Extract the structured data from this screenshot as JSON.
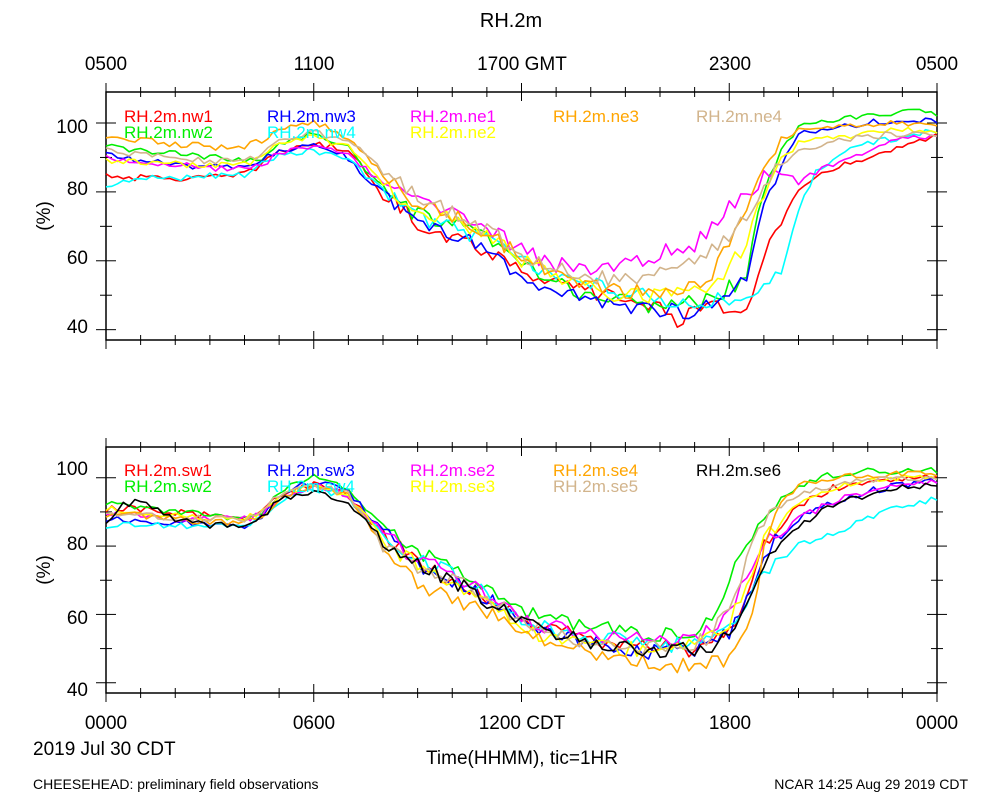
{
  "title": "RH.2m",
  "top_axis_ticks": [
    "0500",
    "1100",
    "1700 GMT",
    "2300",
    "0500"
  ],
  "bottom_axis_ticks": [
    "0000",
    "0600",
    "1200 CDT",
    "1800",
    "0000"
  ],
  "date_label": "2019 Jul 30 CDT",
  "xlabel": "Time(HHMM), tic=1HR",
  "footer_left": "CHEESEHEAD: preliminary field observations",
  "footer_right": "NCAR 14:25 Aug 29 2019 CDT",
  "chart_data": [
    {
      "type": "line",
      "panel": "top",
      "ylabel": "(%)",
      "y_ticks": [
        "40",
        "60",
        "80",
        "100"
      ],
      "ylim": [
        37,
        109
      ],
      "xlim_hours": [
        0,
        24
      ],
      "x_tick_interval_hours": 1,
      "series": [
        {
          "name": "RH.2m.nw1",
          "color": "#ff0000",
          "x": [
            0,
            1,
            2,
            3,
            4,
            4.5,
            5,
            6,
            7,
            8,
            9,
            10,
            11,
            12,
            13,
            14,
            15,
            16,
            16.5,
            17,
            18,
            18.5,
            19,
            20,
            21,
            22,
            23,
            24
          ],
          "y": [
            85,
            84,
            84,
            84,
            85,
            88,
            92,
            94,
            92,
            80,
            71,
            67,
            63,
            58,
            53,
            51,
            49,
            46,
            43,
            46,
            46,
            47,
            62,
            80,
            87,
            90,
            93,
            96
          ]
        },
        {
          "name": "RH.2m.nw2",
          "color": "#00ee00",
          "x": [
            0,
            1,
            2,
            3,
            4,
            4.5,
            5,
            6,
            7,
            8,
            9,
            10,
            11,
            12,
            13,
            14,
            15,
            16,
            17,
            17.5,
            18,
            18.5,
            19,
            19.5,
            20,
            21,
            22,
            23,
            24
          ],
          "y": [
            93,
            92,
            91,
            90,
            89,
            90,
            94,
            97,
            93,
            80,
            73,
            71,
            66,
            59,
            53,
            50,
            48,
            47,
            48,
            49,
            52,
            56,
            80,
            92,
            99,
            101,
            102,
            103,
            103
          ]
        },
        {
          "name": "RH.2m.nw3",
          "color": "#0000ff",
          "x": [
            0,
            1,
            2,
            3,
            4,
            4.5,
            5,
            6,
            7,
            8,
            9,
            10,
            11,
            12,
            13,
            14,
            15,
            16,
            17,
            17.5,
            18,
            18.5,
            19,
            19.5,
            20,
            21,
            22,
            23,
            24
          ],
          "y": [
            91,
            89,
            88,
            87,
            87,
            89,
            92,
            94,
            90,
            79,
            70,
            68,
            63,
            55,
            51,
            49,
            47,
            46,
            45,
            47,
            49,
            55,
            76,
            88,
            97,
            99,
            100,
            101,
            101
          ]
        },
        {
          "name": "RH.2m.nw4",
          "color": "#00ffff",
          "x": [
            0,
            1,
            2,
            3,
            4,
            4.5,
            5,
            6,
            7,
            8,
            9,
            10,
            11,
            12,
            13,
            14,
            15,
            16,
            17,
            17.5,
            18,
            18.5,
            19,
            19.5,
            20,
            20.5,
            21,
            22,
            23,
            24
          ],
          "y": [
            81,
            84,
            84,
            85,
            85,
            88,
            91,
            92,
            90,
            80,
            73,
            70,
            66,
            60,
            56,
            53,
            51,
            49,
            48,
            49,
            48,
            50,
            52,
            56,
            75,
            86,
            90,
            94,
            96,
            98
          ]
        },
        {
          "name": "RH.2m.ne1",
          "color": "#ff00ff",
          "x": [
            0,
            1,
            2,
            3,
            4,
            4.5,
            5,
            6,
            7,
            8,
            9,
            10,
            11,
            12,
            13,
            14,
            15,
            16,
            17,
            17.5,
            18,
            18.5,
            19,
            19.5,
            20,
            21,
            22,
            23,
            24
          ],
          "y": [
            90,
            89,
            88,
            87,
            87,
            88,
            91,
            93,
            91,
            82,
            78,
            75,
            70,
            63,
            59,
            58,
            59,
            62,
            65,
            70,
            75,
            80,
            84,
            86,
            83,
            88,
            92,
            95,
            97
          ]
        },
        {
          "name": "RH.2m.ne2",
          "color": "#ffff00",
          "x": [
            0,
            1,
            2,
            3,
            4,
            4.5,
            5,
            6,
            7,
            8,
            9,
            10,
            11,
            12,
            13,
            14,
            15,
            16,
            17,
            17.5,
            18,
            18.5,
            19,
            19.5,
            20,
            21,
            22,
            23,
            24
          ],
          "y": [
            89,
            89,
            88,
            88,
            88,
            90,
            94,
            96,
            93,
            82,
            74,
            72,
            67,
            60,
            55,
            52,
            50,
            50,
            51,
            53,
            58,
            65,
            80,
            90,
            94,
            96,
            97,
            98,
            98
          ]
        },
        {
          "name": "RH.2m.ne3",
          "color": "#ffa500",
          "x": [
            0,
            1,
            2,
            3,
            4,
            4.5,
            5,
            6,
            7,
            8,
            9,
            10,
            11,
            12,
            13,
            14,
            15,
            16,
            17,
            17.5,
            18,
            18.5,
            19,
            19.5,
            20,
            21,
            22,
            23,
            24
          ],
          "y": [
            95,
            95,
            94,
            93,
            93,
            95,
            98,
            100,
            96,
            85,
            76,
            73,
            68,
            61,
            57,
            53,
            51,
            50,
            53,
            56,
            65,
            75,
            88,
            95,
            98,
            99,
            100,
            100,
            100
          ]
        },
        {
          "name": "RH.2m.ne4",
          "color": "#d2b48c",
          "x": [
            0,
            1,
            2,
            3,
            4,
            4.5,
            5,
            6,
            7,
            8,
            9,
            10,
            11,
            12,
            13,
            14,
            15,
            16,
            17,
            17.5,
            18,
            18.5,
            19,
            19.5,
            20,
            21,
            22,
            23,
            24
          ],
          "y": [
            92,
            91,
            90,
            89,
            89,
            91,
            95,
            97,
            95,
            86,
            78,
            74,
            69,
            62,
            58,
            55,
            55,
            56,
            59,
            63,
            68,
            72,
            82,
            88,
            92,
            95,
            96,
            97,
            97
          ]
        }
      ]
    },
    {
      "type": "line",
      "panel": "bottom",
      "ylabel": "(%)",
      "y_ticks": [
        "40",
        "60",
        "80",
        "100"
      ],
      "ylim": [
        37,
        109
      ],
      "xlim_hours": [
        0,
        24
      ],
      "x_tick_interval_hours": 1,
      "series": [
        {
          "name": "RH.2m.sw1",
          "color": "#ff0000",
          "x": [
            0,
            1,
            2,
            3,
            4,
            4.5,
            5,
            6,
            7,
            8,
            9,
            10,
            11,
            12,
            13,
            14,
            15,
            16,
            17,
            17.5,
            18,
            18.5,
            19,
            20,
            21,
            22,
            23,
            24
          ],
          "y": [
            91,
            91,
            90,
            89,
            88,
            90,
            95,
            98,
            95,
            83,
            75,
            70,
            65,
            58,
            55,
            53,
            51,
            50,
            50,
            52,
            55,
            65,
            80,
            92,
            97,
            99,
            100,
            101
          ]
        },
        {
          "name": "RH.2m.sw2",
          "color": "#00ee00",
          "x": [
            0,
            1,
            2,
            3,
            4,
            4.5,
            5,
            6,
            7,
            8,
            9,
            10,
            11,
            12,
            13,
            14,
            15,
            16,
            17,
            17.5,
            18,
            18.5,
            19,
            20,
            21,
            22,
            23,
            24
          ],
          "y": [
            93,
            91,
            90,
            89,
            88,
            90,
            96,
            100,
            97,
            85,
            78,
            74,
            68,
            61,
            58,
            56,
            55,
            54,
            55,
            60,
            70,
            80,
            90,
            98,
            101,
            102,
            102,
            102
          ]
        },
        {
          "name": "RH.2m.sw3",
          "color": "#0000ff",
          "x": [
            0,
            1,
            2,
            3,
            4,
            4.5,
            5,
            6,
            7,
            8,
            9,
            10,
            11,
            12,
            13,
            14,
            15,
            16,
            17,
            17.5,
            18,
            18.5,
            19,
            20,
            21,
            22,
            23,
            24
          ],
          "y": [
            88,
            87,
            87,
            86,
            86,
            88,
            95,
            99,
            96,
            84,
            75,
            70,
            65,
            57,
            54,
            52,
            50,
            49,
            50,
            51,
            55,
            65,
            78,
            88,
            93,
            96,
            98,
            99
          ]
        },
        {
          "name": "RH.2m.sw4",
          "color": "#00ffff",
          "x": [
            0,
            1,
            2,
            3,
            4,
            4.5,
            5,
            6,
            7,
            8,
            9,
            10,
            11,
            12,
            13,
            14,
            15,
            16,
            17,
            17.5,
            18,
            18.5,
            19,
            20,
            21,
            22,
            23,
            24
          ],
          "y": [
            86,
            86,
            86,
            86,
            86,
            88,
            93,
            97,
            94,
            83,
            76,
            72,
            66,
            59,
            55,
            53,
            52,
            51,
            51,
            53,
            56,
            62,
            73,
            80,
            84,
            88,
            92,
            94
          ]
        },
        {
          "name": "RH.2m.se2",
          "color": "#ff00ff",
          "x": [
            0,
            1,
            2,
            3,
            4,
            4.5,
            5,
            6,
            7,
            8,
            9,
            10,
            11,
            12,
            13,
            14,
            15,
            16,
            17,
            17.5,
            18,
            18.5,
            19,
            20,
            21,
            22,
            23,
            24
          ],
          "y": [
            90,
            89,
            88,
            88,
            88,
            89,
            94,
            98,
            95,
            84,
            76,
            72,
            66,
            59,
            56,
            54,
            53,
            52,
            53,
            56,
            62,
            70,
            80,
            88,
            93,
            96,
            98,
            99
          ]
        },
        {
          "name": "RH.2m.se3",
          "color": "#ffff00",
          "x": [
            0,
            1,
            2,
            3,
            4,
            4.5,
            5,
            6,
            7,
            8,
            9,
            10,
            11,
            12,
            13,
            14,
            15,
            16,
            17,
            17.5,
            18,
            18.5,
            19,
            20,
            21,
            22,
            23,
            24
          ],
          "y": [
            91,
            90,
            89,
            88,
            88,
            90,
            95,
            98,
            95,
            82,
            74,
            70,
            64,
            56,
            53,
            51,
            50,
            50,
            51,
            53,
            58,
            68,
            82,
            92,
            97,
            99,
            100,
            100
          ]
        },
        {
          "name": "RH.2m.se4",
          "color": "#ffa500",
          "x": [
            0,
            1,
            2,
            3,
            4,
            4.5,
            5,
            6,
            7,
            8,
            9,
            10,
            11,
            12,
            13,
            14,
            15,
            16,
            16.5,
            17,
            17.5,
            18,
            18.5,
            19,
            19.5,
            20,
            21,
            22,
            23,
            24
          ],
          "y": [
            89,
            89,
            88,
            87,
            87,
            89,
            94,
            98,
            95,
            80,
            69,
            65,
            61,
            54,
            51,
            49,
            47,
            46,
            45,
            46,
            47,
            47,
            55,
            78,
            92,
            98,
            100,
            101,
            101,
            101
          ]
        },
        {
          "name": "RH.2m.se5",
          "color": "#d2b48c",
          "x": [
            0,
            1,
            2,
            3,
            4,
            4.5,
            5,
            6,
            7,
            8,
            9,
            10,
            11,
            12,
            13,
            14,
            15,
            16,
            17,
            17.5,
            18,
            18.5,
            19,
            20,
            21,
            22,
            23,
            24
          ],
          "y": [
            90,
            89,
            88,
            88,
            88,
            90,
            95,
            98,
            95,
            80,
            74,
            70,
            65,
            58,
            54,
            52,
            51,
            50,
            51,
            54,
            62,
            76,
            88,
            95,
            98,
            99,
            100,
            100
          ]
        },
        {
          "name": "RH.2m.se6",
          "color": "#000000",
          "x": [
            0,
            0.5,
            1,
            2,
            3,
            4,
            4.5,
            5,
            6,
            7,
            8,
            9,
            10,
            11,
            12,
            13,
            14,
            15,
            16,
            17,
            17.5,
            18,
            18.5,
            19,
            20,
            21,
            22,
            23,
            24
          ],
          "y": [
            87,
            92,
            93,
            88,
            86,
            86,
            88,
            94,
            96,
            93,
            82,
            74,
            70,
            64,
            57,
            55,
            52,
            50,
            49,
            50,
            51,
            56,
            62,
            75,
            86,
            92,
            95,
            97,
            98
          ]
        }
      ]
    }
  ]
}
